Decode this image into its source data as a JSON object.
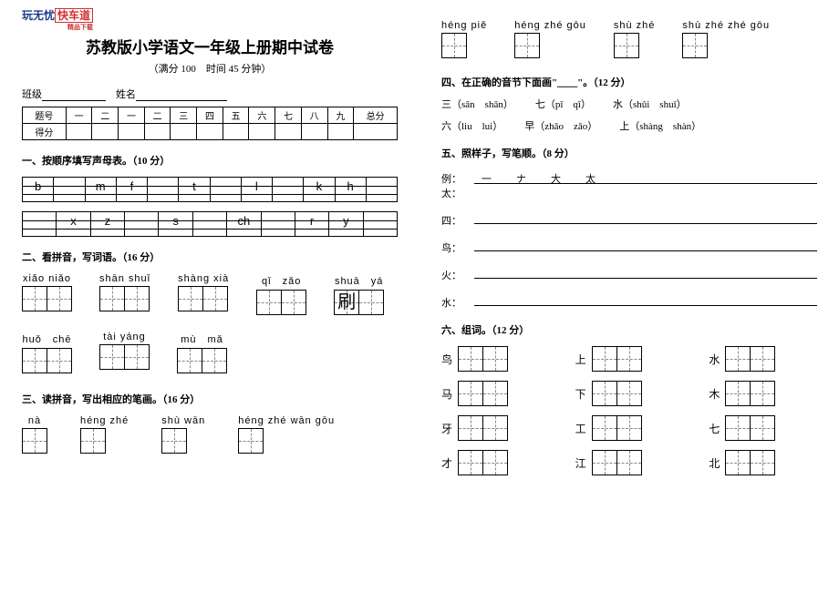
{
  "logo": {
    "a": "玩无忧",
    "b": "快车道",
    "sub": "精品下载"
  },
  "title": "苏教版小学语文一年级上册期中试卷",
  "subtitle": "（满分 100　时间 45 分钟）",
  "name_row": {
    "class_label": "班级",
    "name_label": "姓名"
  },
  "score_table": {
    "headers": [
      "题号",
      "一",
      "二",
      "一",
      "二",
      "三",
      "四",
      "五",
      "六",
      "七",
      "八",
      "九",
      "总分"
    ],
    "row2_label": "得分"
  },
  "q1": {
    "title": "一、按顺序填写声母表。（10 分）",
    "row1": [
      "b",
      "",
      "m",
      "f",
      "",
      "t",
      "",
      "l",
      "",
      "k",
      "h",
      ""
    ],
    "row2": [
      "",
      "x",
      "z",
      "",
      "s",
      "",
      "ch",
      "",
      "r",
      "y",
      ""
    ]
  },
  "q2": {
    "title": "二、看拼音，写词语。（16 分）",
    "items": [
      {
        "py": "xiǎo niǎo",
        "n": 2
      },
      {
        "py": "shān shuǐ",
        "n": 2
      },
      {
        "py": "shàng xià",
        "n": 2
      },
      {
        "py": "qǐ　zǎo",
        "n": 2
      },
      {
        "py": "shuā　yá",
        "n": 2,
        "fill": "刷"
      },
      {
        "py": "huǒ　chē",
        "n": 2
      },
      {
        "py": "tài yáng",
        "n": 2
      },
      {
        "py": "mù　mǎ",
        "n": 2
      }
    ]
  },
  "q3": {
    "title": "三、读拼音，写出相应的笔画。（16 分）",
    "items": [
      {
        "py": "nà"
      },
      {
        "py": "héng zhé"
      },
      {
        "py": "shù wān"
      },
      {
        "py": "héng zhé wān gōu"
      }
    ]
  },
  "q3b": {
    "items": [
      {
        "py": "héng piě"
      },
      {
        "py": "héng zhé gōu"
      },
      {
        "py": "shù zhé"
      },
      {
        "py": "shù zhé zhé gōu"
      }
    ]
  },
  "q4": {
    "title": "四、在正确的音节下面画\"＿＿\"。（12 分）",
    "rows": [
      [
        "三（sān　shān）",
        "七（pī　qī）",
        "水（shǔi　shuǐ）"
      ],
      [
        "六（liu　lui）",
        "早（zhǎo　zǎo）",
        "上（shàng　shàn）"
      ]
    ]
  },
  "q5": {
    "title": "五、照样子，写笔顺。（8 分）",
    "example_label": "例：太：",
    "example_strokes": "一　ナ　大　太",
    "items": [
      "四：",
      "鸟：",
      "火：",
      "水："
    ]
  },
  "q6": {
    "title": "六、组词。（12 分）",
    "chars": [
      "鸟",
      "上",
      "水",
      "马",
      "下",
      "木",
      "牙",
      "工",
      "七",
      "才",
      "江",
      "北"
    ]
  }
}
